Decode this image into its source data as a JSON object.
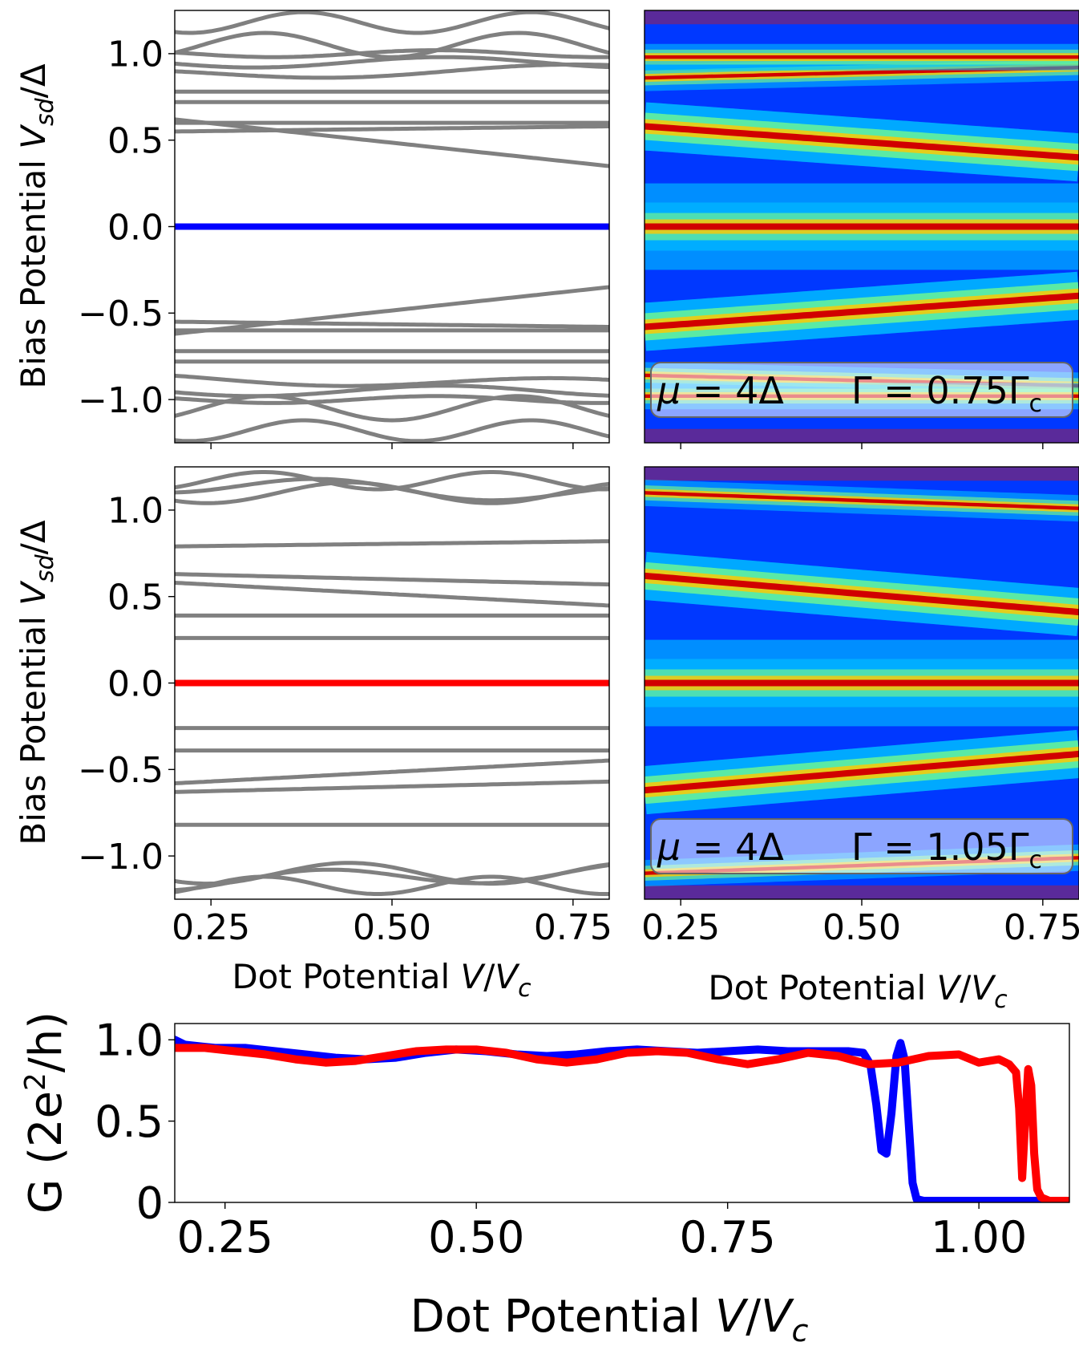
{
  "chart_data": [
    {
      "id": "panel-a",
      "type": "line",
      "position": "top-left",
      "title": "",
      "xlabel": "",
      "ylabel": "Bias Potential V_sd/Δ",
      "ylabel_parts": {
        "prefix": "Bias Potential ",
        "var": "V",
        "sub": "sd",
        "suffix": "/Δ"
      },
      "xlim": [
        0.2,
        0.8
      ],
      "ylim": [
        -1.25,
        1.25
      ],
      "xticks": [
        0.25,
        0.5,
        0.75
      ],
      "xtick_labels": [
        "",
        "",
        ""
      ],
      "yticks": [
        -1.0,
        -0.5,
        0.0,
        0.5,
        1.0
      ],
      "ytick_labels": [
        "−1.0",
        "−0.5",
        "0.0",
        "0.5",
        "1.0"
      ],
      "colors": {
        "levels": "#808080",
        "zero_mode": "#0000ff"
      },
      "highlight_series": {
        "name": "zero mode",
        "x": [
          0.2,
          0.8
        ],
        "y": [
          0.0,
          0.0
        ]
      },
      "series_note": "grey levels: y = y0 + slope*(x - 0.2) + amp*sin(freq*x + phase)",
      "series": [
        {
          "y0": 0.62,
          "slope": -0.45,
          "amp": 0.0,
          "freq": 0,
          "phase": 0
        },
        {
          "y0": -0.62,
          "slope": 0.45,
          "amp": 0.0,
          "freq": 0,
          "phase": 0
        },
        {
          "y0": 0.6,
          "slope": 0.0,
          "amp": 0.0,
          "freq": 0,
          "phase": 0
        },
        {
          "y0": -0.6,
          "slope": 0.0,
          "amp": 0.0,
          "freq": 0,
          "phase": 0
        },
        {
          "y0": 0.55,
          "slope": 0.05,
          "amp": 0.0,
          "freq": 0,
          "phase": 0
        },
        {
          "y0": -0.55,
          "slope": -0.05,
          "amp": 0.0,
          "freq": 0,
          "phase": 0
        },
        {
          "y0": 0.72,
          "slope": 0.0,
          "amp": 0.0,
          "freq": 0,
          "phase": 0
        },
        {
          "y0": -0.72,
          "slope": 0.0,
          "amp": 0.0,
          "freq": 0,
          "phase": 0
        },
        {
          "y0": 0.78,
          "slope": 0.0,
          "amp": 0.0,
          "freq": 0,
          "phase": 0
        },
        {
          "y0": -0.78,
          "slope": 0.0,
          "amp": 0.0,
          "freq": 0,
          "phase": 0
        },
        {
          "y0": 0.88,
          "slope": 0.05,
          "amp": 0.03,
          "freq": 10,
          "phase": 0.5
        },
        {
          "y0": -0.88,
          "slope": -0.05,
          "amp": 0.03,
          "freq": 10,
          "phase": 0.5
        },
        {
          "y0": 0.95,
          "slope": 0.0,
          "amp": 0.03,
          "freq": 12,
          "phase": 1.0
        },
        {
          "y0": -0.95,
          "slope": 0.0,
          "amp": 0.03,
          "freq": 12,
          "phase": 1.0
        },
        {
          "y0": 1.0,
          "slope": 0.0,
          "amp": 0.02,
          "freq": 14,
          "phase": 0.0
        },
        {
          "y0": -1.0,
          "slope": 0.0,
          "amp": 0.02,
          "freq": 14,
          "phase": 0.0
        },
        {
          "y0": 1.05,
          "slope": 0.0,
          "amp": 0.07,
          "freq": 18,
          "phase": 2.0
        },
        {
          "y0": -1.05,
          "slope": 0.0,
          "amp": 0.07,
          "freq": 18,
          "phase": 2.0
        },
        {
          "y0": 1.18,
          "slope": 0.0,
          "amp": 0.06,
          "freq": 20,
          "phase": 0.3
        },
        {
          "y0": -1.18,
          "slope": 0.0,
          "amp": 0.06,
          "freq": 20,
          "phase": 0.3
        }
      ]
    },
    {
      "id": "panel-b",
      "type": "heatmap",
      "position": "top-right",
      "title": "",
      "xlabel": "",
      "ylabel": "",
      "xlim": [
        0.2,
        0.8
      ],
      "ylim": [
        -1.25,
        1.25
      ],
      "xticks": [
        0.25,
        0.5,
        0.75
      ],
      "xtick_labels": [
        "",
        "",
        ""
      ],
      "colormap": "jet",
      "ridges_note": "bright conductance ridges follow the bound-state energies",
      "ridges": [
        {
          "y0": 0.0,
          "slope": 0.0
        },
        {
          "y0": 0.58,
          "slope": -0.3
        },
        {
          "y0": -0.58,
          "slope": 0.3
        },
        {
          "y0": 0.86,
          "slope": 0.1
        },
        {
          "y0": 0.98,
          "slope": 0.0
        }
      ],
      "annotation": {
        "mu": "μ = 4Δ",
        "gamma": "Γ = 0.75Γ",
        "gamma_sub": "c"
      }
    },
    {
      "id": "panel-c",
      "type": "line",
      "position": "middle-left",
      "title": "",
      "xlabel": "Dot Potential V/V_c",
      "xlabel_parts": {
        "prefix": "Dot Potential  ",
        "var": "V",
        "mid": "/",
        "var2": "V",
        "sub": "c"
      },
      "ylabel": "Bias Potential V_sd/Δ",
      "ylabel_parts": {
        "prefix": "Bias Potential ",
        "var": "V",
        "sub": "sd",
        "suffix": "/Δ"
      },
      "xlim": [
        0.2,
        0.8
      ],
      "ylim": [
        -1.25,
        1.25
      ],
      "xticks": [
        0.25,
        0.5,
        0.75
      ],
      "xtick_labels": [
        "0.25",
        "0.50",
        "0.75"
      ],
      "yticks": [
        -1.0,
        -0.5,
        0.0,
        0.5,
        1.0
      ],
      "ytick_labels": [
        "−1.0",
        "−0.5",
        "0.0",
        "0.5",
        "1.0"
      ],
      "colors": {
        "levels": "#808080",
        "zero_mode": "#ff0000"
      },
      "highlight_series": {
        "name": "zero mode",
        "x": [
          0.2,
          0.8
        ],
        "y": [
          0.0,
          0.0
        ]
      },
      "series_note": "grey levels: y = y0 + slope*(x - 0.2) + amp*sin(freq*x + phase)",
      "series": [
        {
          "y0": 0.26,
          "slope": 0.0,
          "amp": 0.0,
          "freq": 0,
          "phase": 0
        },
        {
          "y0": -0.26,
          "slope": 0.0,
          "amp": 0.0,
          "freq": 0,
          "phase": 0
        },
        {
          "y0": 0.39,
          "slope": 0.0,
          "amp": 0.0,
          "freq": 0,
          "phase": 0
        },
        {
          "y0": -0.39,
          "slope": 0.0,
          "amp": 0.0,
          "freq": 0,
          "phase": 0
        },
        {
          "y0": 0.58,
          "slope": -0.22,
          "amp": 0.0,
          "freq": 0,
          "phase": 0
        },
        {
          "y0": -0.58,
          "slope": 0.22,
          "amp": 0.0,
          "freq": 0,
          "phase": 0
        },
        {
          "y0": 0.63,
          "slope": -0.1,
          "amp": 0.0,
          "freq": 0,
          "phase": 0
        },
        {
          "y0": -0.63,
          "slope": 0.1,
          "amp": 0.0,
          "freq": 0,
          "phase": 0
        },
        {
          "y0": 0.79,
          "slope": 0.05,
          "amp": 0.0,
          "freq": 0,
          "phase": 0
        },
        {
          "y0": -0.82,
          "slope": 0.0,
          "amp": 0.0,
          "freq": 0,
          "phase": 0
        },
        {
          "y0": 1.1,
          "slope": 0.0,
          "amp": 0.06,
          "freq": 16,
          "phase": 0.8
        },
        {
          "y0": -1.1,
          "slope": 0.0,
          "amp": 0.06,
          "freq": 16,
          "phase": 0.8
        },
        {
          "y0": 1.15,
          "slope": -0.1,
          "amp": 0.05,
          "freq": 14,
          "phase": 2.2
        },
        {
          "y0": -1.15,
          "slope": 0.1,
          "amp": 0.05,
          "freq": 14,
          "phase": 2.2
        },
        {
          "y0": 1.17,
          "slope": 0.0,
          "amp": 0.05,
          "freq": 20,
          "phase": 1.4
        },
        {
          "y0": -1.17,
          "slope": 0.0,
          "amp": 0.05,
          "freq": 20,
          "phase": 1.4
        }
      ]
    },
    {
      "id": "panel-d",
      "type": "heatmap",
      "position": "middle-right",
      "title": "",
      "xlabel": "Dot Potential V/V_c",
      "xlabel_parts": {
        "prefix": "Dot Potential ",
        "var": "V",
        "mid": "/",
        "var2": "V",
        "sub": "c"
      },
      "ylabel": "",
      "xlim": [
        0.2,
        0.8
      ],
      "ylim": [
        -1.25,
        1.25
      ],
      "xticks": [
        0.25,
        0.5,
        0.75
      ],
      "xtick_labels": [
        "0.25",
        "0.50",
        "0.75"
      ],
      "colormap": "jet",
      "ridges_note": "bright conductance ridges follow the bound-state energies",
      "ridges": [
        {
          "y0": 0.0,
          "slope": 0.0
        },
        {
          "y0": 0.62,
          "slope": -0.35
        },
        {
          "y0": -0.62,
          "slope": 0.35
        },
        {
          "y0": 1.1,
          "slope": -0.15
        }
      ],
      "annotation": {
        "mu": "μ = 4Δ",
        "gamma": "Γ = 1.05Γ",
        "gamma_sub": "c"
      }
    },
    {
      "id": "panel-e",
      "type": "line",
      "position": "bottom",
      "title": "",
      "xlabel": "Dot Potential V/V_c",
      "xlabel_parts": {
        "prefix": "Dot Potential ",
        "var": "V",
        "mid": "/",
        "var2": "V",
        "sub": "c"
      },
      "ylabel": "G (2e^2/h)",
      "ylabel_parts": {
        "prefix": "G (2e",
        "sup": "2",
        "suffix": "/h)"
      },
      "xlim": [
        0.2,
        1.09
      ],
      "ylim": [
        0,
        1.1
      ],
      "xticks": [
        0.25,
        0.5,
        0.75,
        1.0
      ],
      "xtick_labels": [
        "0.25",
        "0.50",
        "0.75",
        "1.00"
      ],
      "yticks": [
        0,
        0.5,
        1.0
      ],
      "ytick_labels": [
        "0",
        "0.5",
        "1.0"
      ],
      "series": [
        {
          "name": "Γ = 0.75Γc",
          "color": "#0000ff",
          "x": [
            0.2,
            0.21,
            0.24,
            0.27,
            0.3,
            0.33,
            0.36,
            0.39,
            0.42,
            0.45,
            0.48,
            0.51,
            0.54,
            0.57,
            0.6,
            0.63,
            0.66,
            0.69,
            0.72,
            0.75,
            0.78,
            0.81,
            0.84,
            0.87,
            0.885,
            0.892,
            0.898,
            0.903,
            0.908,
            0.913,
            0.918,
            0.922,
            0.926,
            0.93,
            0.934,
            0.938,
            0.945,
            1.0,
            1.09
          ],
          "y": [
            1.0,
            0.97,
            0.95,
            0.95,
            0.93,
            0.91,
            0.89,
            0.88,
            0.89,
            0.92,
            0.94,
            0.93,
            0.91,
            0.9,
            0.91,
            0.93,
            0.94,
            0.93,
            0.92,
            0.93,
            0.94,
            0.93,
            0.93,
            0.93,
            0.92,
            0.85,
            0.6,
            0.32,
            0.3,
            0.55,
            0.9,
            0.98,
            0.88,
            0.5,
            0.12,
            0.02,
            0.01,
            0.01,
            0.01
          ]
        },
        {
          "name": "Γ = 1.05Γc",
          "color": "#ff0000",
          "x": [
            0.2,
            0.23,
            0.26,
            0.29,
            0.32,
            0.35,
            0.38,
            0.41,
            0.44,
            0.47,
            0.5,
            0.53,
            0.56,
            0.59,
            0.62,
            0.65,
            0.68,
            0.71,
            0.74,
            0.77,
            0.8,
            0.83,
            0.86,
            0.89,
            0.92,
            0.95,
            0.98,
            1.0,
            1.02,
            1.03,
            1.037,
            1.04,
            1.043,
            1.046,
            1.049,
            1.052,
            1.055,
            1.058,
            1.062,
            1.066,
            1.07,
            1.09
          ],
          "y": [
            0.95,
            0.95,
            0.93,
            0.91,
            0.88,
            0.86,
            0.87,
            0.9,
            0.93,
            0.94,
            0.94,
            0.92,
            0.88,
            0.86,
            0.88,
            0.92,
            0.93,
            0.92,
            0.88,
            0.85,
            0.88,
            0.92,
            0.9,
            0.85,
            0.86,
            0.9,
            0.91,
            0.86,
            0.88,
            0.85,
            0.8,
            0.58,
            0.15,
            0.5,
            0.82,
            0.72,
            0.3,
            0.08,
            0.03,
            0.02,
            0.01,
            0.01
          ]
        }
      ]
    }
  ]
}
